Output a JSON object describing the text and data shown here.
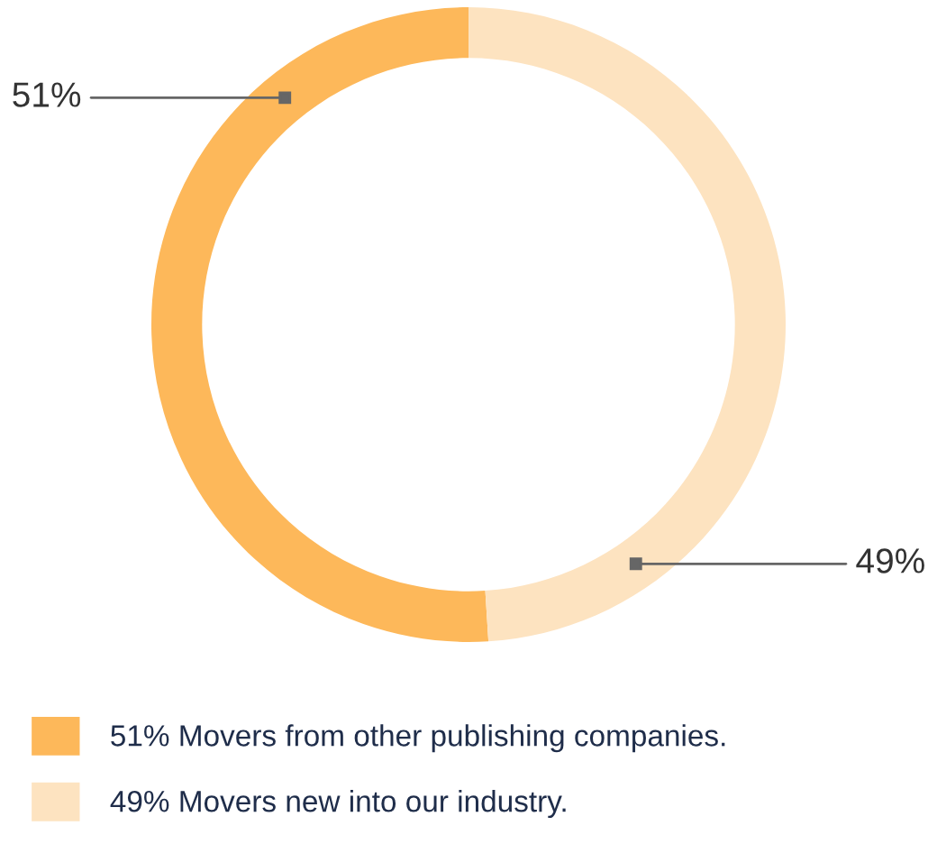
{
  "chart_data": {
    "type": "donut",
    "categories": [
      "51% Movers from other publishing companies.",
      "49% Movers new into our industry."
    ],
    "values": [
      51,
      49
    ],
    "colors": [
      "#fdb85a",
      "#fde3c0"
    ],
    "value_labels": [
      "51%",
      "49%"
    ],
    "legend": "bottom"
  }
}
